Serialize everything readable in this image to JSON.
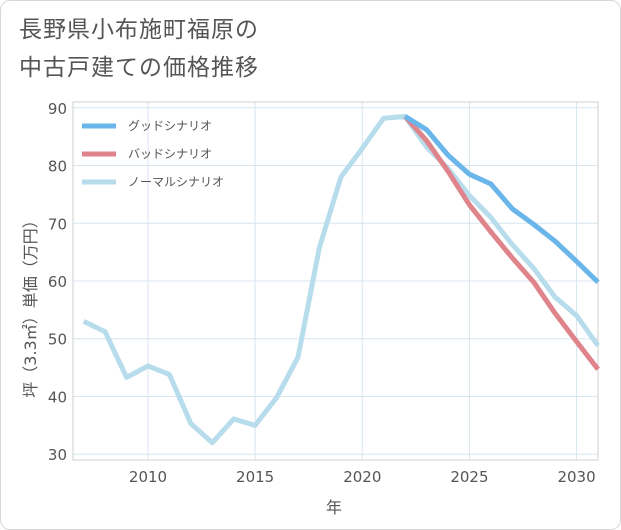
{
  "title": "長野県小布施町福原の\n中古戸建ての価格推移",
  "chart_data": {
    "type": "line",
    "xlabel": "年",
    "ylabel": "坪（3.3㎡）単価（万円）",
    "xlim": [
      2006.5,
      2031
    ],
    "ylim": [
      29,
      91
    ],
    "x_ticks": [
      2010,
      2015,
      2020,
      2025,
      2030
    ],
    "y_ticks": [
      30,
      40,
      50,
      60,
      70,
      80,
      90
    ],
    "grid": true,
    "legend_position": "top-left",
    "series": [
      {
        "name": "グッドシナリオ",
        "color": "#6ab6ea",
        "x": [
          2022,
          2023,
          2024,
          2025,
          2026,
          2027,
          2028,
          2029,
          2030,
          2031
        ],
        "y": [
          88.5,
          86.2,
          81.8,
          78.5,
          76.8,
          72.5,
          69.8,
          66.9,
          63.4,
          59.8
        ]
      },
      {
        "name": "バッドシナリオ",
        "color": "#e0848c",
        "x": [
          2022,
          2023,
          2024,
          2025,
          2026,
          2027,
          2028,
          2029,
          2030,
          2031
        ],
        "y": [
          88.5,
          84.3,
          79.0,
          73.2,
          68.5,
          64.0,
          59.8,
          54.4,
          49.5,
          44.7
        ]
      },
      {
        "name": "ノーマルシナリオ",
        "color": "#b7dcec",
        "x": [
          2007,
          2008,
          2009,
          2010,
          2011,
          2012,
          2013,
          2014,
          2015,
          2016,
          2017,
          2018,
          2019,
          2020,
          2021,
          2022,
          2023,
          2024,
          2025,
          2026,
          2027,
          2028,
          2029,
          2030,
          2031
        ],
        "y": [
          53.0,
          51.2,
          43.3,
          45.3,
          43.8,
          35.3,
          32.0,
          36.1,
          35.0,
          39.8,
          46.8,
          65.8,
          78.0,
          83.0,
          88.2,
          88.5,
          83.2,
          79.5,
          74.8,
          71.0,
          66.3,
          62.2,
          57.2,
          54.0,
          48.8
        ]
      }
    ]
  }
}
